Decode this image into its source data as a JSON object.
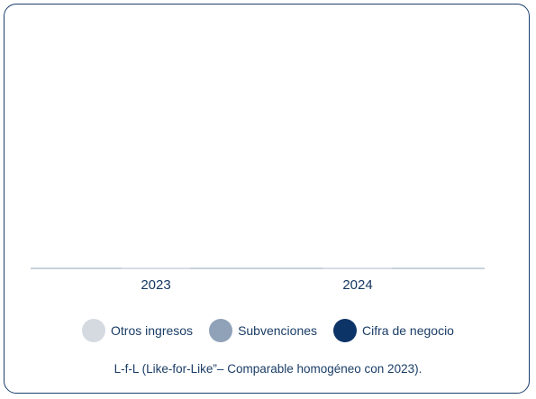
{
  "chart_data": {
    "type": "bar",
    "categories": [
      "2023",
      "2024"
    ],
    "series": [
      {
        "name": "Otros ingresos",
        "values": [
          null,
          null
        ]
      },
      {
        "name": "Subvenciones",
        "values": [
          null,
          null
        ]
      },
      {
        "name": "Cifra de negocio",
        "values": [
          null,
          null
        ]
      }
    ],
    "title": "",
    "xlabel": "",
    "ylabel": "",
    "legend_position": "bottom",
    "grid": false
  },
  "legend": {
    "items": [
      {
        "label": "Otros ingresos",
        "color": "#d5dae1"
      },
      {
        "label": "Subvenciones",
        "color": "#8fa2b8"
      },
      {
        "label": "Cifra de negocio",
        "color": "#0d3467"
      }
    ]
  },
  "footnote": "L-f-L (Like-for-Like”– Comparable homogéneo con 2023)."
}
